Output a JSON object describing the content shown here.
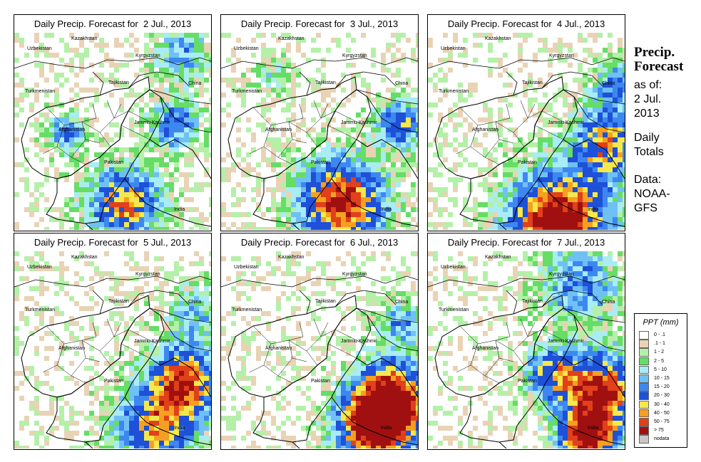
{
  "panels": [
    {
      "title": "Daily Precip. Forecast for  2 Jul., 2013",
      "seed": 11,
      "hotspots": [
        [
          0.55,
          0.85,
          0.18,
          1.0
        ],
        [
          0.25,
          0.5,
          0.1,
          0.6
        ],
        [
          0.8,
          0.45,
          0.12,
          0.7
        ],
        [
          0.85,
          0.1,
          0.15,
          0.5
        ]
      ]
    },
    {
      "title": "Daily Precip. Forecast for  3 Jul., 2013",
      "seed": 23,
      "hotspots": [
        [
          0.6,
          0.85,
          0.22,
          1.2
        ],
        [
          0.9,
          0.45,
          0.12,
          0.8
        ],
        [
          0.25,
          0.2,
          0.1,
          0.3
        ]
      ]
    },
    {
      "title": "Daily Precip. Forecast for  4 Jul., 2013",
      "seed": 37,
      "hotspots": [
        [
          0.65,
          0.95,
          0.25,
          1.4
        ],
        [
          0.9,
          0.55,
          0.18,
          0.9
        ],
        [
          0.95,
          0.25,
          0.12,
          0.6
        ]
      ]
    },
    {
      "title": "Daily Precip. Forecast for  5 Jul., 2013",
      "seed": 41,
      "hotspots": [
        [
          0.85,
          0.65,
          0.18,
          1.1
        ],
        [
          0.7,
          0.9,
          0.2,
          0.9
        ],
        [
          0.9,
          0.3,
          0.15,
          0.4
        ]
      ]
    },
    {
      "title": "Daily Precip. Forecast for  6 Jul., 2013",
      "seed": 53,
      "hotspots": [
        [
          0.85,
          0.75,
          0.2,
          1.4
        ],
        [
          0.75,
          0.9,
          0.18,
          1.0
        ],
        [
          0.9,
          0.35,
          0.12,
          0.5
        ]
      ]
    },
    {
      "title": "Daily Precip. Forecast for  7 Jul., 2013",
      "seed": 67,
      "hotspots": [
        [
          0.85,
          0.7,
          0.2,
          1.2
        ],
        [
          0.8,
          0.95,
          0.15,
          1.1
        ],
        [
          0.6,
          0.6,
          0.12,
          0.7
        ],
        [
          0.75,
          0.15,
          0.2,
          0.6
        ]
      ]
    }
  ],
  "labels": {
    "kazakhstan": "Kazakhstan",
    "uzbekistan": "Uzbekistan",
    "kyrgyzstan": "Kyrgyzstan",
    "tajikistan": "Tajikistan",
    "turkmenistan": "Turkmenistan",
    "china": "China",
    "afghanistan": "Afghanistan",
    "jammu_kashmir": "Jammu Kashmir",
    "pakistan": "Pakistan",
    "india": "India"
  },
  "side": {
    "title_line1": "Precip.",
    "title_line2": "Forecast",
    "asof_line1": "as of:",
    "asof_line2": "2 Jul.",
    "asof_line3": "2013",
    "totals_line1": "Daily",
    "totals_line2": "Totals",
    "data_line1": "Data:",
    "data_line2": "NOAA-",
    "data_line3": "GFS"
  },
  "legend": {
    "title": "PPT (mm)",
    "items": [
      {
        "label": "0 - .1",
        "color": "#ffffff"
      },
      {
        "label": ".1 - 1",
        "color": "#e8d3b5"
      },
      {
        "label": "1 - 2",
        "color": "#b4f0a8"
      },
      {
        "label": "2 - 5",
        "color": "#66dd66"
      },
      {
        "label": "5 - 10",
        "color": "#a8ecf5"
      },
      {
        "label": "10 - 15",
        "color": "#6fc0f5"
      },
      {
        "label": "15 - 20",
        "color": "#3d88f0"
      },
      {
        "label": "20 - 30",
        "color": "#1e50d8"
      },
      {
        "label": "30 - 40",
        "color": "#f5e84a"
      },
      {
        "label": "40 - 50",
        "color": "#f5a020"
      },
      {
        "label": "50 - 75",
        "color": "#e0401a"
      },
      {
        "label": "> 75",
        "color": "#a01010"
      },
      {
        "label": "nodata",
        "color": "#c8c8c8"
      }
    ]
  }
}
